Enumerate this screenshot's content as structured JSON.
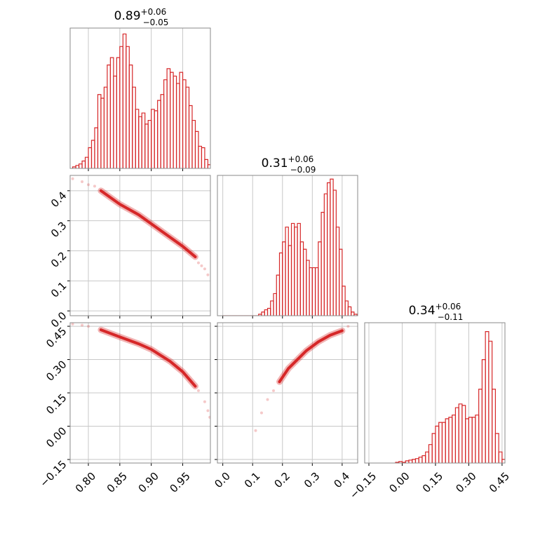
{
  "chart_data": [
    {
      "type": "histogram",
      "title": "0.89",
      "title_upper": "+0.06",
      "title_lower": "−0.05",
      "color": "#d62728",
      "bins": [
        0.775,
        0.78,
        0.785,
        0.79,
        0.795,
        0.8,
        0.805,
        0.81,
        0.815,
        0.82,
        0.825,
        0.83,
        0.835,
        0.84,
        0.845,
        0.85,
        0.855,
        0.86,
        0.865,
        0.87,
        0.875,
        0.88,
        0.885,
        0.89,
        0.895,
        0.9,
        0.905,
        0.91,
        0.915,
        0.92,
        0.925,
        0.93,
        0.935,
        0.94,
        0.945,
        0.95,
        0.955,
        0.96,
        0.965,
        0.97,
        0.975,
        0.98,
        0.985,
        0.99,
        0.995
      ],
      "values": [
        2,
        4,
        6,
        10,
        15,
        28,
        38,
        55,
        100,
        95,
        110,
        140,
        150,
        125,
        150,
        165,
        182,
        165,
        140,
        110,
        80,
        70,
        75,
        60,
        65,
        80,
        78,
        92,
        100,
        120,
        135,
        130,
        125,
        115,
        130,
        120,
        110,
        85,
        65,
        50,
        30,
        28,
        12,
        5
      ],
      "xlim": [
        0.771,
        0.994
      ],
      "ylim": [
        0,
        190
      ],
      "grid": true,
      "xticklabels": false,
      "yticklabels": false,
      "xticks": [
        {
          "value": 0.8,
          "label": "0.80"
        },
        0.85,
        {
          "value": 0.9,
          "label": "0.90"
        },
        0.95
      ]
    },
    {
      "type": "scatter",
      "color": "#d62728",
      "grid": true,
      "xticklabels": false,
      "yticklabels": true,
      "xlim": [
        0.771,
        0.994
      ],
      "ylim": [
        -0.016,
        0.451
      ],
      "xticks": [
        {
          "value": 0.8,
          "label": "0.80"
        },
        0.85,
        {
          "value": 0.9,
          "label": "0.90"
        },
        0.95
      ],
      "yticks": [
        {
          "value": 0,
          "label": "0.0"
        },
        0.1,
        0.2,
        0.3,
        0.4
      ],
      "points": {
        "x": [
          0.775,
          0.79,
          0.8,
          0.81,
          0.975,
          0.98,
          0.985,
          0.99
        ],
        "y": [
          0.44,
          0.43,
          0.42,
          0.415,
          0.16,
          0.15,
          0.14,
          0.12
        ]
      },
      "contour": {
        "x": [
          0.82,
          0.85,
          0.88,
          0.9,
          0.93,
          0.95,
          0.97
        ],
        "y": [
          0.4,
          0.355,
          0.32,
          0.29,
          0.245,
          0.215,
          0.18
        ]
      }
    },
    {
      "type": "histogram",
      "title": "0.31",
      "title_upper": "+0.06",
      "title_lower": "−0.09",
      "color": "#d62728",
      "bins": [
        0,
        0.01,
        0.02,
        0.03,
        0.04,
        0.05,
        0.06,
        0.07,
        0.08,
        0.09,
        0.1,
        0.11,
        0.12,
        0.13,
        0.14,
        0.15,
        0.16,
        0.17,
        0.18,
        0.19,
        0.2,
        0.21,
        0.22,
        0.23,
        0.24,
        0.25,
        0.26,
        0.27,
        0.28,
        0.29,
        0.3,
        0.31,
        0.32,
        0.33,
        0.34,
        0.35,
        0.36,
        0.37,
        0.38,
        0.39,
        0.4,
        0.41,
        0.42,
        0.43,
        0.44,
        0.45
      ],
      "values": [
        0,
        0,
        0,
        0,
        0,
        0,
        0,
        0,
        0,
        0,
        0,
        0,
        2,
        5,
        8,
        10,
        20,
        30,
        55,
        85,
        100,
        120,
        95,
        125,
        120,
        125,
        100,
        90,
        75,
        65,
        65,
        65,
        100,
        140,
        165,
        180,
        185,
        170,
        120,
        90,
        40,
        20,
        12,
        5,
        2
      ],
      "xlim": [
        -0.018,
        0.452
      ],
      "ylim": [
        0,
        190
      ],
      "grid": true,
      "xticklabels": false,
      "yticklabels": false,
      "xticks": [
        {
          "value": 0,
          "label": "0.0"
        },
        0.1,
        0.2,
        0.3,
        0.4
      ]
    },
    {
      "type": "scatter",
      "color": "#d62728",
      "grid": true,
      "xticklabels": true,
      "yticklabels": true,
      "xlim": [
        0.771,
        0.994
      ],
      "ylim": [
        -0.166,
        0.466
      ],
      "xticks": [
        {
          "value": 0.8,
          "label": "0.80"
        },
        0.85,
        {
          "value": 0.9,
          "label": "0.90"
        },
        0.95
      ],
      "yticks": [
        {
          "value": -0.15,
          "label": "−0.15"
        },
        {
          "value": 0,
          "label": "0.00"
        },
        0.15,
        {
          "value": 0.3,
          "label": "0.30"
        },
        0.45
      ],
      "points": {
        "x": [
          0.775,
          0.79,
          0.8,
          0.975,
          0.985,
          0.99,
          0.993
        ],
        "y": [
          0.46,
          0.455,
          0.45,
          0.16,
          0.11,
          0.07,
          0.04
        ]
      },
      "contour": {
        "x": [
          0.82,
          0.85,
          0.88,
          0.9,
          0.93,
          0.95,
          0.97
        ],
        "y": [
          0.434,
          0.402,
          0.371,
          0.346,
          0.292,
          0.245,
          0.18
        ]
      }
    },
    {
      "type": "scatter",
      "color": "#d62728",
      "grid": true,
      "xticklabels": true,
      "yticklabels": false,
      "xlim": [
        -0.018,
        0.452
      ],
      "ylim": [
        -0.166,
        0.466
      ],
      "xticks": [
        {
          "value": 0,
          "label": "0.0"
        },
        0.1,
        0.2,
        0.3,
        0.4
      ],
      "yticks": [
        {
          "value": -0.15,
          "label": "−0.15"
        },
        {
          "value": 0,
          "label": "0.00"
        },
        0.15,
        {
          "value": 0.3,
          "label": "0.30"
        },
        0.45
      ],
      "points": {
        "x": [
          0.11,
          0.13,
          0.15,
          0.17,
          0.42
        ],
        "y": [
          -0.02,
          0.06,
          0.12,
          0.16,
          0.45
        ]
      },
      "contour": {
        "x": [
          0.19,
          0.22,
          0.25,
          0.28,
          0.32,
          0.36,
          0.4
        ],
        "y": [
          0.2,
          0.26,
          0.3,
          0.34,
          0.38,
          0.41,
          0.43
        ]
      }
    },
    {
      "type": "histogram",
      "title": "0.34",
      "title_upper": "+0.06",
      "title_lower": "−0.11",
      "color": "#d62728",
      "bins": [
        -0.03,
        -0.015,
        0,
        0.015,
        0.03,
        0.045,
        0.06,
        0.075,
        0.09,
        0.105,
        0.12,
        0.135,
        0.15,
        0.165,
        0.18,
        0.195,
        0.21,
        0.225,
        0.24,
        0.255,
        0.27,
        0.285,
        0.3,
        0.315,
        0.33,
        0.345,
        0.36,
        0.375,
        0.39,
        0.405,
        0.42,
        0.435,
        0.45,
        0.465
      ],
      "values": [
        1,
        2,
        1,
        3,
        4,
        5,
        6,
        8,
        10,
        15,
        25,
        40,
        50,
        55,
        55,
        60,
        62,
        65,
        75,
        80,
        78,
        60,
        62,
        62,
        65,
        100,
        140,
        178,
        165,
        100,
        40,
        15,
        5
      ],
      "xlim": [
        -0.169,
        0.463
      ],
      "ylim": [
        0,
        190
      ],
      "grid": true,
      "xticklabels": true,
      "yticklabels": false,
      "xticks": [
        {
          "value": -0.15,
          "label": "−0.15"
        },
        {
          "value": 0,
          "label": "0.00"
        },
        0.15,
        {
          "value": 0.3,
          "label": "0.30"
        },
        0.45
      ]
    }
  ]
}
